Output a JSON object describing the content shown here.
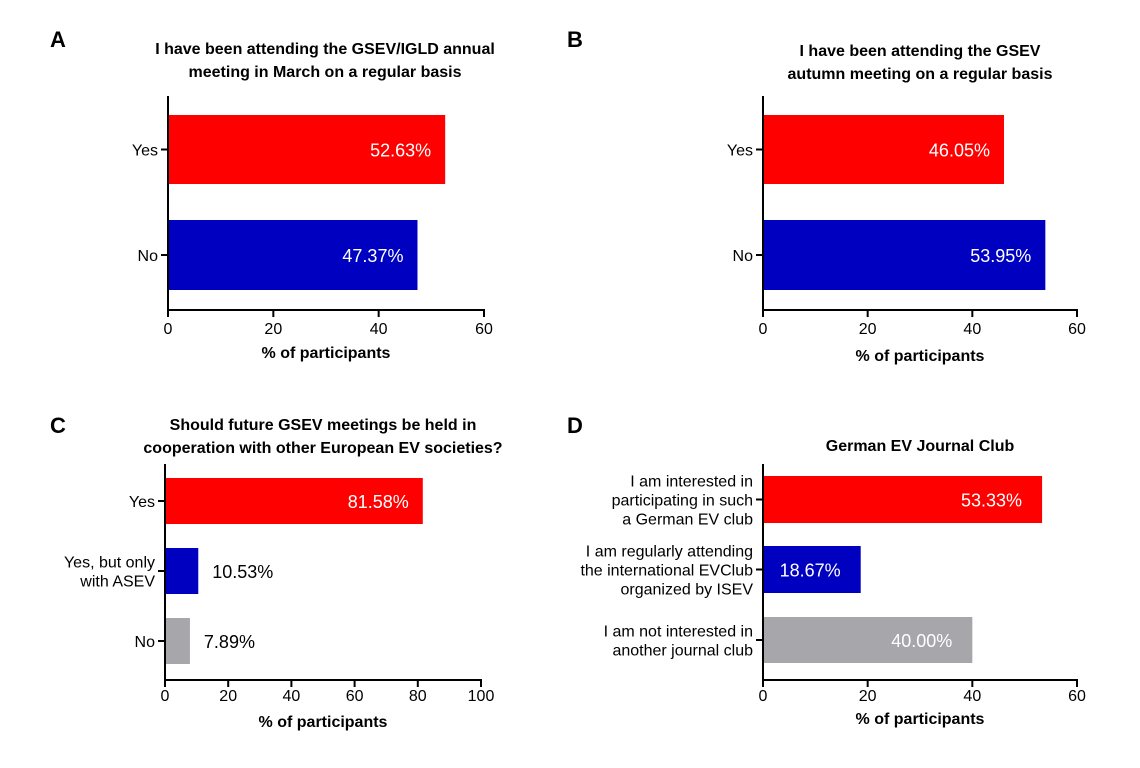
{
  "colors": {
    "red": "#ff0000",
    "blue": "#0000c0",
    "gray": "#a6a6ab",
    "axis": "#000000"
  },
  "chart_data": [
    {
      "panel": "A",
      "type": "bar",
      "orientation": "horizontal",
      "title": [
        "I have been attending the GSEV/IGLD annual",
        "meeting in March on a regular basis"
      ],
      "xlabel": "% of participants",
      "xlim": [
        0,
        60
      ],
      "xticks": [
        0,
        20,
        40,
        60
      ],
      "categories": [
        [
          "Yes"
        ],
        [
          "No"
        ]
      ],
      "values": [
        52.63,
        47.37
      ],
      "data_labels": [
        "52.63%",
        "47.37%"
      ],
      "bar_colors": [
        "red",
        "blue"
      ],
      "label_inside": [
        true,
        true
      ]
    },
    {
      "panel": "B",
      "type": "bar",
      "orientation": "horizontal",
      "title": [
        "I have been attending the GSEV",
        "autumn meeting on a regular basis"
      ],
      "xlabel": "% of participants",
      "xlim": [
        0,
        60
      ],
      "xticks": [
        0,
        20,
        40,
        60
      ],
      "categories": [
        [
          "Yes"
        ],
        [
          "No"
        ]
      ],
      "values": [
        46.05,
        53.95
      ],
      "data_labels": [
        "46.05%",
        "53.95%"
      ],
      "bar_colors": [
        "red",
        "blue"
      ],
      "label_inside": [
        true,
        true
      ]
    },
    {
      "panel": "C",
      "type": "bar",
      "orientation": "horizontal",
      "title": [
        "Should future GSEV meetings be held in",
        "cooperation with other European  EV societies?"
      ],
      "xlabel": "% of participants",
      "xlim": [
        0,
        100
      ],
      "xticks": [
        0,
        20,
        40,
        60,
        80,
        100
      ],
      "categories": [
        [
          "Yes"
        ],
        [
          "Yes, but only",
          "with ASEV"
        ],
        [
          "No"
        ]
      ],
      "values": [
        81.58,
        10.53,
        7.89
      ],
      "data_labels": [
        "81.58%",
        "10.53%",
        "7.89%"
      ],
      "bar_colors": [
        "red",
        "blue",
        "gray"
      ],
      "label_inside": [
        true,
        false,
        false
      ]
    },
    {
      "panel": "D",
      "type": "bar",
      "orientation": "horizontal",
      "title": [
        "German EV Journal Club"
      ],
      "xlabel": "% of participants",
      "xlim": [
        0,
        60
      ],
      "xticks": [
        0,
        20,
        40,
        60
      ],
      "categories": [
        [
          "I am interested in",
          "participating in such",
          "a German EV club"
        ],
        [
          "I am regularly attending",
          "the international EVClub",
          "organized by ISEV"
        ],
        [
          "I am not interested in",
          "another journal club"
        ]
      ],
      "values": [
        53.33,
        18.67,
        40.0
      ],
      "data_labels": [
        "53.33%",
        "18.67%",
        "40.00%"
      ],
      "bar_colors": [
        "red",
        "blue",
        "gray"
      ],
      "label_inside": [
        true,
        true,
        true
      ]
    }
  ]
}
